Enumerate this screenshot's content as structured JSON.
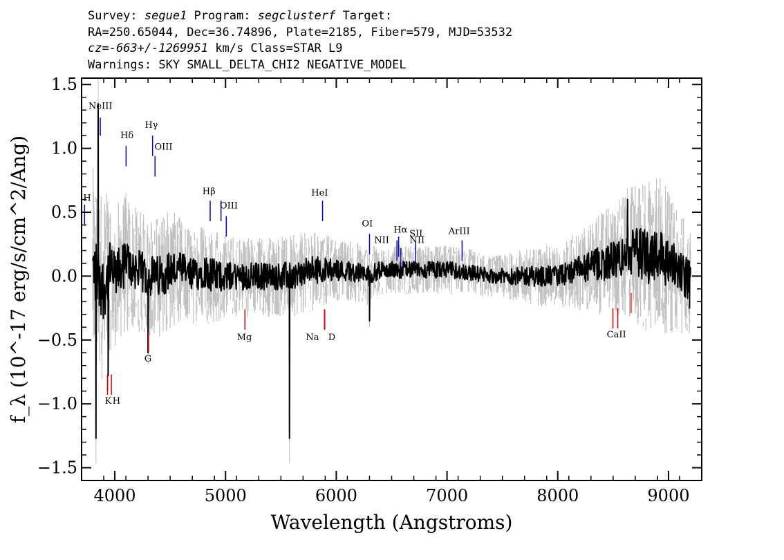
{
  "header": {
    "line1": {
      "survey_label": "Survey: ",
      "survey": "segue1",
      "program_label": " Program: ",
      "program": "segclusterf",
      "target_label": " Target:"
    },
    "line2": "RA=250.65044, Dec=36.74896, Plate=2185, Fiber=579, MJD=53532",
    "line3": {
      "cz": "cz=-663+/-1269951",
      "rest": " km/s Class=STAR L9"
    },
    "line4": "Warnings: SKY SMALL_DELTA_CHI2 NEGATIVE_MODEL"
  },
  "colors": {
    "flux": "#000000",
    "error": "#c0c0c0",
    "emission": "#0000cc",
    "absorption": "#dd0000"
  },
  "chart_data": {
    "type": "line",
    "title": "",
    "xlabel": "Wavelength (Angstroms)",
    "ylabel": "f_λ (10^-17 erg/s/cm^2/Ang)",
    "xlim": [
      3700,
      9300
    ],
    "ylim": [
      -1.6,
      1.55
    ],
    "x_ticks": [
      4000,
      5000,
      6000,
      7000,
      8000,
      9000
    ],
    "y_ticks": [
      -1.5,
      -1.0,
      -0.5,
      0.0,
      0.5,
      1.0,
      1.5
    ],
    "y_tick_labels": [
      "−1.5",
      "−1.0",
      "−0.5",
      "0.0",
      "0.5",
      "1.0",
      "1.5"
    ],
    "series": [
      {
        "role": "flux",
        "x": [
          3800,
          3850,
          3900,
          3950,
          4000,
          4100,
          4200,
          4300,
          4400,
          4500,
          4600,
          4700,
          4800,
          4900,
          5000,
          5200,
          5400,
          5580,
          5600,
          5800,
          6000,
          6200,
          6290,
          6400,
          6600,
          6800,
          7000,
          7200,
          7400,
          7600,
          7800,
          8000,
          8200,
          8400,
          8600,
          8700,
          8800,
          8900,
          9000,
          9100,
          9150,
          9200
        ],
        "y": [
          0.05,
          0.0,
          -0.1,
          0.05,
          0.0,
          0.1,
          0.05,
          0.0,
          0.0,
          0.05,
          0.05,
          0.0,
          0.05,
          0.0,
          0.0,
          0.0,
          0.0,
          0.0,
          0.0,
          0.05,
          0.05,
          0.03,
          0.0,
          0.05,
          0.05,
          0.05,
          0.05,
          0.03,
          0.0,
          0.0,
          0.0,
          0.0,
          0.05,
          0.1,
          0.15,
          0.2,
          0.15,
          0.2,
          0.1,
          0.05,
          0.0,
          -0.05
        ],
        "band": [
          0.5,
          0.5,
          0.45,
          0.4,
          0.35,
          0.35,
          0.3,
          0.3,
          0.3,
          0.3,
          0.25,
          0.25,
          0.25,
          0.25,
          0.2,
          0.2,
          0.2,
          0.2,
          0.2,
          0.2,
          0.15,
          0.15,
          0.15,
          0.12,
          0.12,
          0.12,
          0.12,
          0.12,
          0.1,
          0.12,
          0.15,
          0.15,
          0.2,
          0.25,
          0.3,
          0.35,
          0.4,
          0.4,
          0.35,
          0.3,
          0.3,
          0.3
        ]
      }
    ],
    "spikes": [
      {
        "x": 3830,
        "y": -1.27
      },
      {
        "x": 3850,
        "y": 1.35
      },
      {
        "x": 3940,
        "y": -0.78
      },
      {
        "x": 4300,
        "y": -0.6
      },
      {
        "x": 5577,
        "y": -1.27
      },
      {
        "x": 6300,
        "y": -0.35
      },
      {
        "x": 8630,
        "y": 0.6
      },
      {
        "x": 9190,
        "y": -0.25
      }
    ],
    "emission_lines": [
      {
        "label": "NeIII",
        "x": 3869,
        "y0": 1.1,
        "y1": 1.24,
        "tx": 3870,
        "ty": 1.31
      },
      {
        "label": "Hδ",
        "x": 4102,
        "y0": 0.86,
        "y1": 1.02,
        "tx": 4110,
        "ty": 1.08
      },
      {
        "label": "Hγ",
        "x": 4341,
        "y0": 0.94,
        "y1": 1.1,
        "tx": 4330,
        "ty": 1.16
      },
      {
        "label": "OIII",
        "x": 4363,
        "y0": 0.78,
        "y1": 0.94,
        "tx": 4440,
        "ty": 0.99
      },
      {
        "label": "H",
        "x": 3727,
        "y0": 0.4,
        "y1": 0.56,
        "tx": 3750,
        "ty": 0.59
      },
      {
        "label": "Hβ",
        "x": 4861,
        "y0": 0.43,
        "y1": 0.59,
        "tx": 4850,
        "ty": 0.64
      },
      {
        "label": "OIII",
        "x": 4959,
        "y0": 0.43,
        "y1": 0.59,
        "tx": 5030,
        "ty": 0.53
      },
      {
        "label": "OIII",
        "x": 5007,
        "y0": 0.31,
        "y1": 0.47,
        "tx": 5030,
        "ty": 0.53
      },
      {
        "label": "HeI",
        "x": 5876,
        "y0": 0.43,
        "y1": 0.59,
        "tx": 5850,
        "ty": 0.63
      },
      {
        "label": "OI",
        "x": 6300,
        "y0": 0.17,
        "y1": 0.33,
        "tx": 6280,
        "ty": 0.39
      },
      {
        "label": "NII",
        "x": 6548,
        "y0": 0.12,
        "y1": 0.28,
        "tx": 6410,
        "ty": 0.26
      },
      {
        "label": "Hα",
        "x": 6563,
        "y0": 0.15,
        "y1": 0.31,
        "tx": 6580,
        "ty": 0.34
      },
      {
        "label": "NII",
        "x": 6583,
        "y0": 0.06,
        "y1": 0.22,
        "tx": 6730,
        "ty": 0.26
      },
      {
        "label": "SII",
        "x": 6717,
        "y0": 0.1,
        "y1": 0.26,
        "tx": 6720,
        "ty": 0.31
      },
      {
        "label": "ArIII",
        "x": 7136,
        "y0": 0.12,
        "y1": 0.28,
        "tx": 7110,
        "ty": 0.33
      }
    ],
    "absorption_lines": [
      {
        "label": "K",
        "x": 3934,
        "y0": -0.93,
        "y1": -0.77,
        "tx": 3940,
        "ty": -1.0
      },
      {
        "label": "H",
        "x": 3969,
        "y0": -0.93,
        "y1": -0.77,
        "tx": 4015,
        "ty": -1.0
      },
      {
        "label": "G",
        "x": 4305,
        "y0": -0.6,
        "y1": -0.44,
        "tx": 4300,
        "ty": -0.67
      },
      {
        "label": "Mg",
        "x": 5175,
        "y0": -0.42,
        "y1": -0.26,
        "tx": 5170,
        "ty": -0.5
      },
      {
        "label": "Na",
        "x": 5893,
        "y0": -0.42,
        "y1": -0.26,
        "tx": 5785,
        "ty": -0.5
      },
      {
        "label": "D",
        "x": 5896,
        "y0": -0.42,
        "y1": -0.26,
        "tx": 5960,
        "ty": -0.5
      },
      {
        "label": "CaII",
        "x": 8498,
        "y0": -0.41,
        "y1": -0.25,
        "tx": 8530,
        "ty": -0.48
      },
      {
        "label": "CaII",
        "x": 8542,
        "y0": -0.41,
        "y1": -0.25,
        "tx": 8530,
        "ty": -0.48
      },
      {
        "label": "CaII",
        "x": 8662,
        "y0": -0.29,
        "y1": -0.13,
        "tx": 8530,
        "ty": -0.48
      }
    ]
  }
}
